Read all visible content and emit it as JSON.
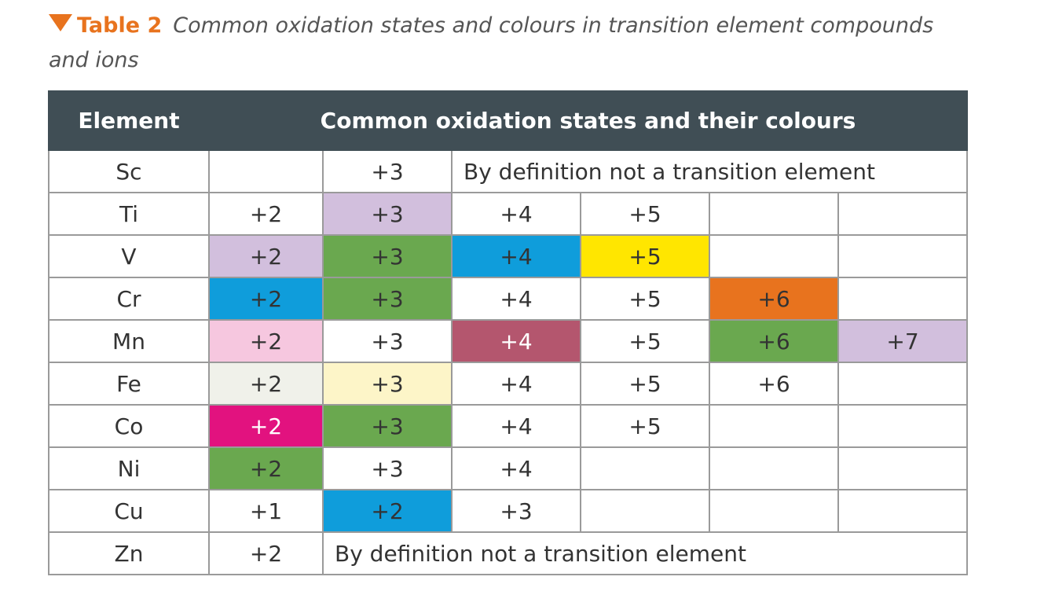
{
  "caption": {
    "label": "Table 2",
    "title": "Common oxidation states and colours in transition element compounds and ions"
  },
  "header": {
    "element": "Element",
    "states": "Common oxidation states and their colours"
  },
  "colors": {
    "header_bg": "#404e55",
    "accent": "#e8731e",
    "border": "#9a9a9a"
  },
  "rows": [
    {
      "element": "Sc",
      "cells": [
        {
          "text": "",
          "bg": "#ffffff"
        },
        {
          "text": "+3",
          "bg": "#ffffff"
        },
        {
          "text": "By definition not a transition element",
          "bg": "#ffffff",
          "span": 4,
          "note": true
        }
      ]
    },
    {
      "element": "Ti",
      "cells": [
        {
          "text": "+2",
          "bg": "#ffffff"
        },
        {
          "text": "+3",
          "bg": "#d2bfdd"
        },
        {
          "text": "+4",
          "bg": "#ffffff"
        },
        {
          "text": "+5",
          "bg": "#ffffff"
        },
        {
          "text": "",
          "bg": "#ffffff"
        },
        {
          "text": "",
          "bg": "#ffffff"
        }
      ]
    },
    {
      "element": "V",
      "cells": [
        {
          "text": "+2",
          "bg": "#d2bfdd"
        },
        {
          "text": "+3",
          "bg": "#6aa84f"
        },
        {
          "text": "+4",
          "bg": "#0f9ddb"
        },
        {
          "text": "+5",
          "bg": "#ffe600"
        },
        {
          "text": "",
          "bg": "#ffffff"
        },
        {
          "text": "",
          "bg": "#ffffff"
        }
      ]
    },
    {
      "element": "Cr",
      "cells": [
        {
          "text": "+2",
          "bg": "#0f9ddb"
        },
        {
          "text": "+3",
          "bg": "#6aa84f"
        },
        {
          "text": "+4",
          "bg": "#ffffff"
        },
        {
          "text": "+5",
          "bg": "#ffffff"
        },
        {
          "text": "+6",
          "bg": "#e8731e"
        },
        {
          "text": "",
          "bg": "#ffffff"
        }
      ]
    },
    {
      "element": "Mn",
      "cells": [
        {
          "text": "+2",
          "bg": "#f6c7df"
        },
        {
          "text": "+3",
          "bg": "#ffffff"
        },
        {
          "text": "+4",
          "bg": "#b4566e",
          "fg": "#ffffff"
        },
        {
          "text": "+5",
          "bg": "#ffffff"
        },
        {
          "text": "+6",
          "bg": "#6aa84f"
        },
        {
          "text": "+7",
          "bg": "#d2bfdd"
        }
      ]
    },
    {
      "element": "Fe",
      "cells": [
        {
          "text": "+2",
          "bg": "#f0f1ea"
        },
        {
          "text": "+3",
          "bg": "#fdf5c8"
        },
        {
          "text": "+4",
          "bg": "#ffffff"
        },
        {
          "text": "+5",
          "bg": "#ffffff"
        },
        {
          "text": "+6",
          "bg": "#ffffff"
        },
        {
          "text": "",
          "bg": "#ffffff"
        }
      ]
    },
    {
      "element": "Co",
      "cells": [
        {
          "text": "+2",
          "bg": "#e2127f",
          "fg": "#ffffff"
        },
        {
          "text": "+3",
          "bg": "#6aa84f"
        },
        {
          "text": "+4",
          "bg": "#ffffff"
        },
        {
          "text": "+5",
          "bg": "#ffffff"
        },
        {
          "text": "",
          "bg": "#ffffff"
        },
        {
          "text": "",
          "bg": "#ffffff"
        }
      ]
    },
    {
      "element": "Ni",
      "cells": [
        {
          "text": "+2",
          "bg": "#6aa84f"
        },
        {
          "text": "+3",
          "bg": "#ffffff"
        },
        {
          "text": "+4",
          "bg": "#ffffff"
        },
        {
          "text": "",
          "bg": "#ffffff"
        },
        {
          "text": "",
          "bg": "#ffffff"
        },
        {
          "text": "",
          "bg": "#ffffff"
        }
      ]
    },
    {
      "element": "Cu",
      "cells": [
        {
          "text": "+1",
          "bg": "#ffffff"
        },
        {
          "text": "+2",
          "bg": "#0f9ddb"
        },
        {
          "text": "+3",
          "bg": "#ffffff"
        },
        {
          "text": "",
          "bg": "#ffffff"
        },
        {
          "text": "",
          "bg": "#ffffff"
        },
        {
          "text": "",
          "bg": "#ffffff"
        }
      ]
    },
    {
      "element": "Zn",
      "cells": [
        {
          "text": "+2",
          "bg": "#ffffff"
        },
        {
          "text": "By definition not a transition element",
          "bg": "#ffffff",
          "span": 5,
          "note": true
        }
      ]
    }
  ]
}
